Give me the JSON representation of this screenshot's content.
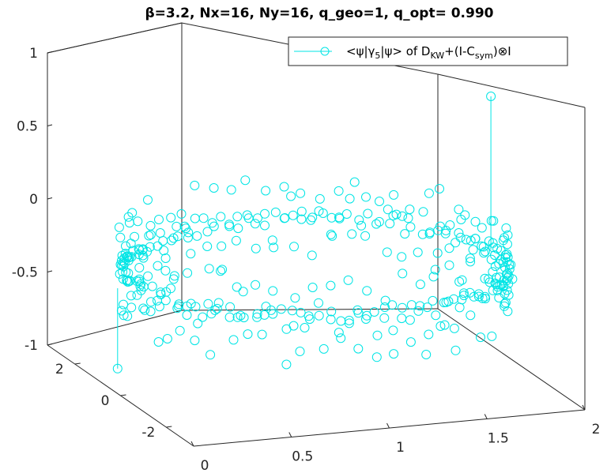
{
  "chart_data": {
    "type": "scatter",
    "title": "β=3.2, Nx=16, Ny=16, q_geo=1, q_opt= 0.990",
    "legend": {
      "entry_prefix": "<ψ|γ",
      "entry_sub1": "5",
      "entry_mid": "|ψ> of D",
      "entry_sub2": "KW",
      "entry_mid2": "+(I-C",
      "entry_sub3": "sym",
      "entry_tail": ")⊗I",
      "placement": "top-right"
    },
    "marker": "circle-open",
    "color": "#00e5e5",
    "grid": false,
    "xlim": [
      0,
      2
    ],
    "ylim": [
      -3.2,
      3.2
    ],
    "zlim": [
      -1,
      1
    ],
    "x_ticks": [
      "0",
      "0.5",
      "1",
      "1.5",
      "2"
    ],
    "y_ticks": [
      "2",
      "0",
      "-2"
    ],
    "z_ticks": [
      "1",
      "0.5",
      "0",
      "-0.5",
      "-1"
    ],
    "ring": {
      "description_center_x": 1.0,
      "points_per_band": 64,
      "z_values_main": -0.25,
      "z_values_lower": -0.45,
      "z_values_upper": -0.05
    },
    "stems": [
      {
        "x": 1.86,
        "y": -0.3,
        "z": 0.85,
        "z_base": -0.2
      },
      {
        "x": 0.02,
        "y": 0.3,
        "z": -0.85,
        "z_base": -0.3
      }
    ]
  }
}
